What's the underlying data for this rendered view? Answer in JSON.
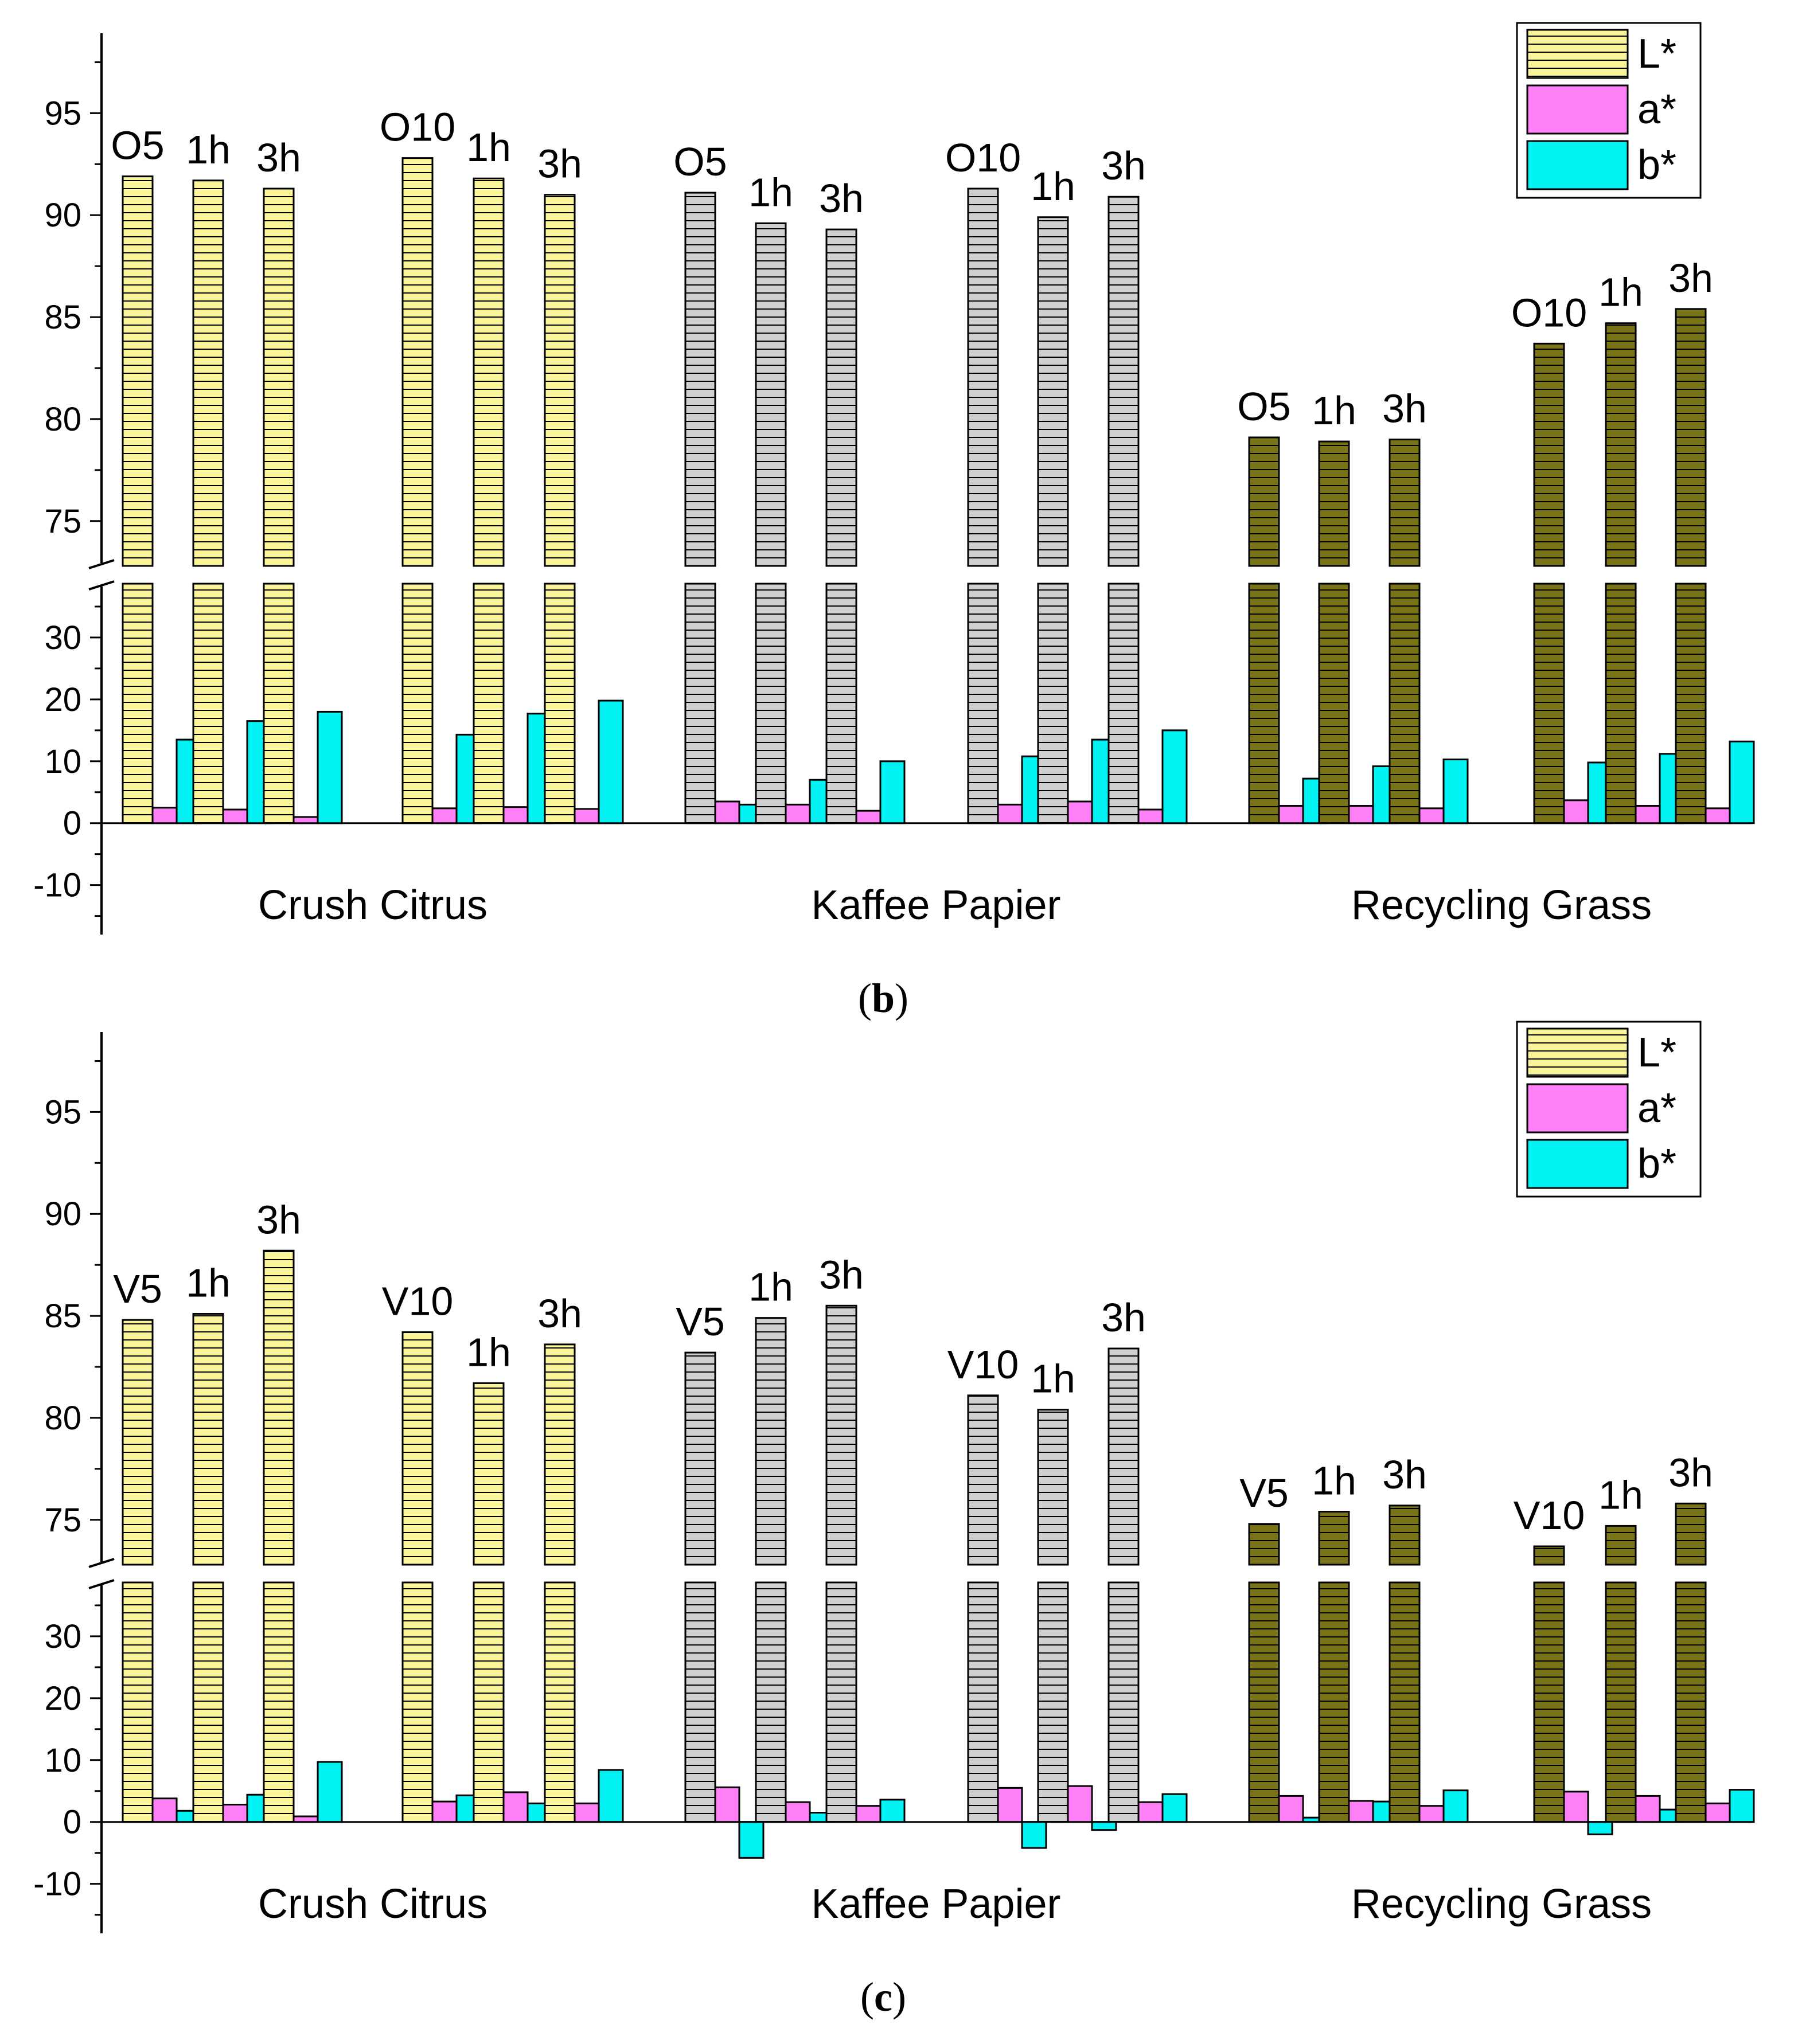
{
  "colors": {
    "L_crush": "#fbf59a",
    "L_kaffee": "#d0d0d0",
    "L_grass": "#7a7418",
    "a": "#ff80f7",
    "b": "#00f2f2",
    "axis": "#000000"
  },
  "chart_data": [
    {
      "type": "bar",
      "panel": "b",
      "caption": {
        "open": "(",
        "letter": "b",
        "close": ")"
      },
      "axis": {
        "upper_ylim": [
          72.8,
          99.2
        ],
        "upper_ticks": [
          "95",
          "90",
          "85",
          "80",
          "75"
        ],
        "lower_ylim": [
          -18,
          38.7
        ],
        "lower_ticks": [
          "30",
          "20",
          "10",
          "0",
          "-10"
        ]
      },
      "legend": {
        "position": "top-right",
        "entries": [
          "L*",
          "a*",
          "b*"
        ]
      },
      "groups": [
        {
          "name": "Crush Citrus",
          "samples": [
            {
              "label": "O5",
              "L": 91.9,
              "a": 2.5,
              "b": 13.5
            },
            {
              "label": "1h",
              "L": 91.7,
              "a": 2.2,
              "b": 16.5
            },
            {
              "label": "3h",
              "L": 91.3,
              "a": 1.0,
              "b": 18.0
            },
            {
              "label": "O10",
              "L": 92.8,
              "a": 2.4,
              "b": 14.3
            },
            {
              "label": "1h",
              "L": 91.8,
              "a": 2.6,
              "b": 17.7
            },
            {
              "label": "3h",
              "L": 91.0,
              "a": 2.3,
              "b": 19.8
            }
          ]
        },
        {
          "name": "Kaffee Papier",
          "samples": [
            {
              "label": "O5",
              "L": 91.1,
              "a": 3.5,
              "b": 3.0
            },
            {
              "label": "1h",
              "L": 89.6,
              "a": 3.0,
              "b": 7.0
            },
            {
              "label": "3h",
              "L": 89.3,
              "a": 2.0,
              "b": 10.0
            },
            {
              "label": "O10",
              "L": 91.3,
              "a": 3.0,
              "b": 10.8
            },
            {
              "label": "1h",
              "L": 89.9,
              "a": 3.5,
              "b": 13.5
            },
            {
              "label": "3h",
              "L": 90.9,
              "a": 2.2,
              "b": 15.0
            }
          ]
        },
        {
          "name": "Recycling Grass",
          "samples": [
            {
              "label": "O5",
              "L": 79.1,
              "a": 2.8,
              "b": 7.2
            },
            {
              "label": "1h",
              "L": 78.9,
              "a": 2.8,
              "b": 9.2
            },
            {
              "label": "3h",
              "L": 79.0,
              "a": 2.4,
              "b": 10.3
            },
            {
              "label": "O10",
              "L": 83.7,
              "a": 3.7,
              "b": 9.8
            },
            {
              "label": "1h",
              "L": 84.7,
              "a": 2.8,
              "b": 11.2
            },
            {
              "label": "3h",
              "L": 85.4,
              "a": 2.4,
              "b": 13.2
            }
          ]
        }
      ]
    },
    {
      "type": "bar",
      "panel": "c",
      "caption": {
        "open": "(",
        "letter": "c",
        "close": ")"
      },
      "axis": {
        "upper_ylim": [
          72.8,
          99.2
        ],
        "upper_ticks": [
          "95",
          "90",
          "85",
          "80",
          "75"
        ],
        "lower_ylim": [
          -18,
          38.7
        ],
        "lower_ticks": [
          "30",
          "20",
          "10",
          "0",
          "-10"
        ]
      },
      "legend": {
        "position": "top-right",
        "entries": [
          "L*",
          "a*",
          "b*"
        ]
      },
      "groups": [
        {
          "name": "Crush Citrus",
          "samples": [
            {
              "label": "V5",
              "L": 84.8,
              "a": 3.8,
              "b": 1.8
            },
            {
              "label": "1h",
              "L": 85.1,
              "a": 2.8,
              "b": 4.4
            },
            {
              "label": "3h",
              "L": 88.2,
              "a": 0.9,
              "b": 9.7
            },
            {
              "label": "V10",
              "L": 84.2,
              "a": 3.3,
              "b": 4.3
            },
            {
              "label": "1h",
              "L": 81.7,
              "a": 4.8,
              "b": 3.0
            },
            {
              "label": "3h",
              "L": 83.6,
              "a": 3.0,
              "b": 8.4
            }
          ]
        },
        {
          "name": "Kaffee Papier",
          "samples": [
            {
              "label": "V5",
              "L": 83.2,
              "a": 5.6,
              "b": -5.8
            },
            {
              "label": "1h",
              "L": 84.9,
              "a": 3.2,
              "b": 1.5
            },
            {
              "label": "3h",
              "L": 85.5,
              "a": 2.6,
              "b": 3.6
            },
            {
              "label": "V10",
              "L": 81.1,
              "a": 5.5,
              "b": -4.2
            },
            {
              "label": "1h",
              "L": 80.4,
              "a": 5.8,
              "b": -1.3
            },
            {
              "label": "3h",
              "L": 83.4,
              "a": 3.2,
              "b": 4.5
            }
          ]
        },
        {
          "name": "Recycling Grass",
          "samples": [
            {
              "label": "V5",
              "L": 74.8,
              "a": 4.2,
              "b": 0.7
            },
            {
              "label": "1h",
              "L": 75.4,
              "a": 3.4,
              "b": 3.3
            },
            {
              "label": "3h",
              "L": 75.7,
              "a": 2.6,
              "b": 5.1
            },
            {
              "label": "V10",
              "L": 73.7,
              "a": 4.9,
              "b": -2.0
            },
            {
              "label": "1h",
              "L": 74.7,
              "a": 4.2,
              "b": 2.0
            },
            {
              "label": "3h",
              "L": 75.8,
              "a": 3.0,
              "b": 5.2
            }
          ]
        }
      ]
    }
  ]
}
